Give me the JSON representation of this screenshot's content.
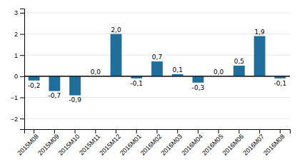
{
  "chart_data": {
    "type": "bar",
    "categories": [
      "2015M08",
      "2015M09",
      "2015M10",
      "2015M11",
      "2015M12",
      "2016M01",
      "2016M02",
      "2016M03",
      "2016M04",
      "2016M05",
      "2016M06",
      "2016M07",
      "2016M08"
    ],
    "values": [
      -0.2,
      -0.7,
      -0.9,
      0.0,
      2.0,
      -0.1,
      0.7,
      0.1,
      -0.3,
      0.0,
      0.5,
      1.9,
      -0.1
    ],
    "value_labels": [
      "-0,2",
      "-0,7",
      "-0,9",
      "0,0",
      "2,0",
      "-0,1",
      "0,7",
      "0,1",
      "-0,3",
      "0,0",
      "0,5",
      "1,9",
      "-0,1"
    ],
    "color": "#1f6e9c",
    "ylim": [
      -2.5,
      3.2
    ],
    "yticks": [
      -2,
      -1,
      0,
      1,
      2,
      3
    ],
    "grid": true,
    "data_labels": true
  }
}
